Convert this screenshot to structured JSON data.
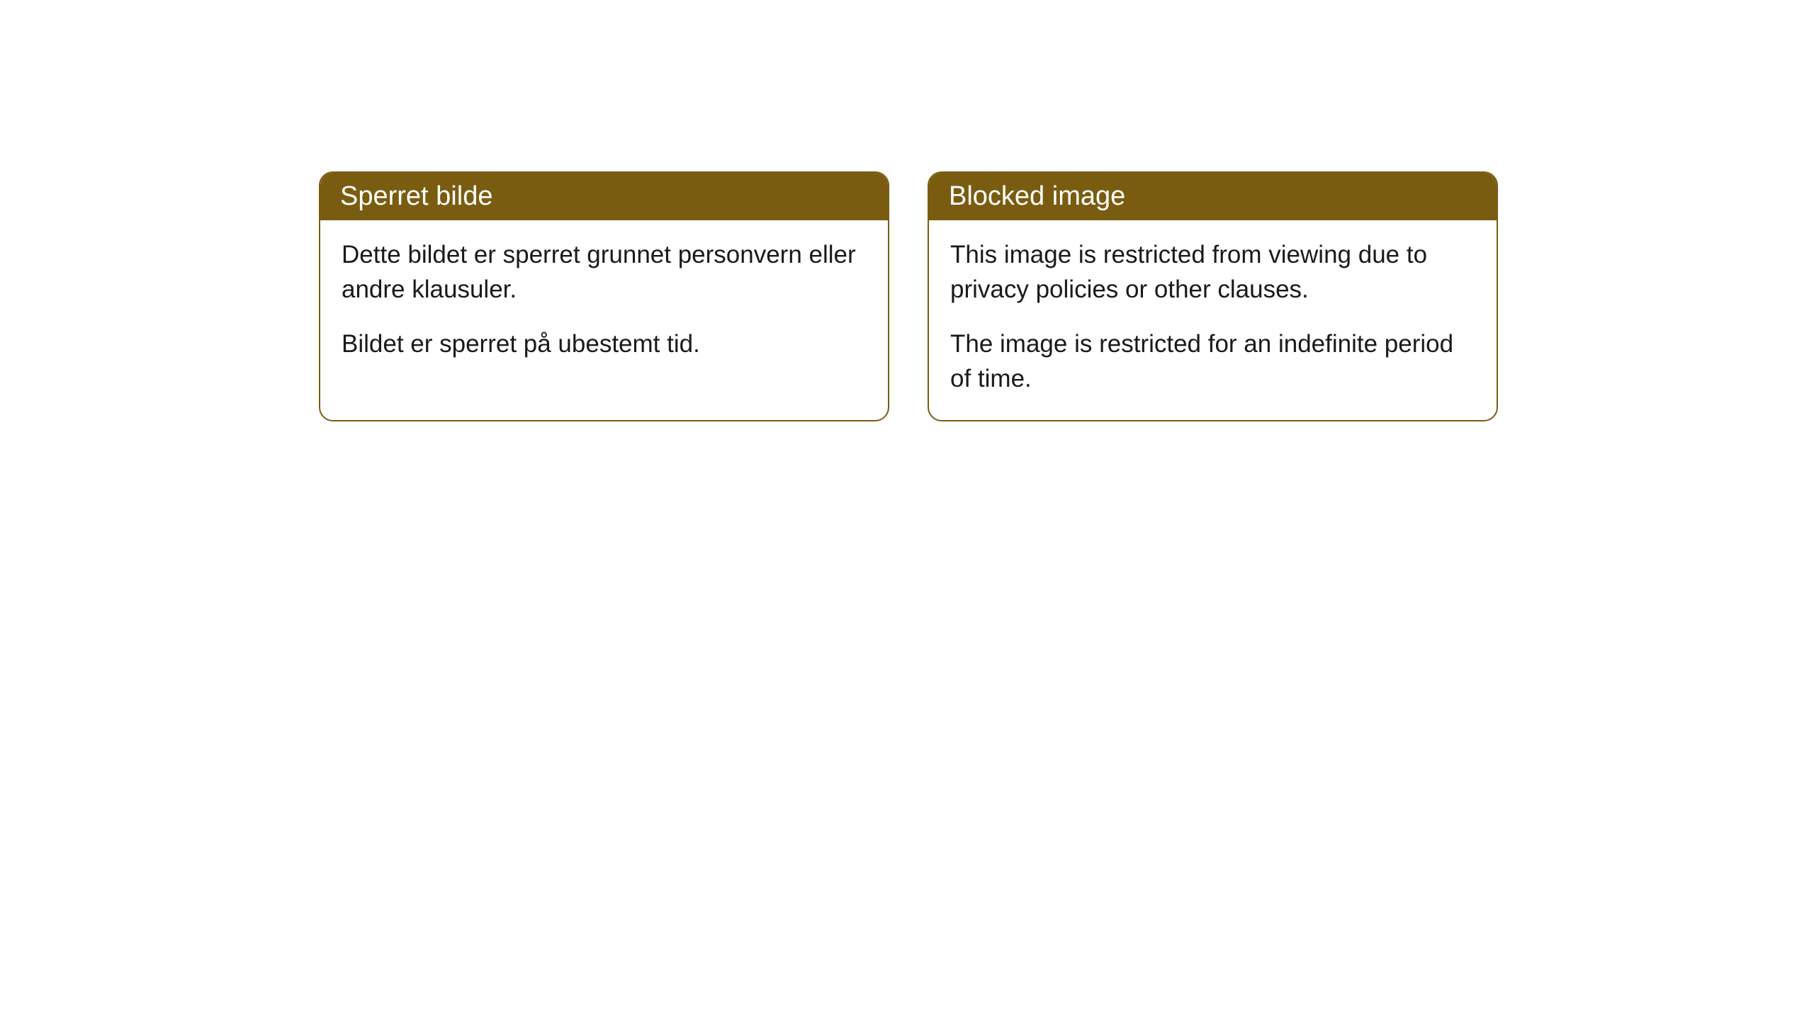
{
  "layout": {
    "background_color": "#ffffff",
    "card_border_color": "#7a5c11",
    "card_border_radius": 20,
    "header_background": "#7a5c11",
    "header_text_color": "#ffffff",
    "body_text_color": "#1a1a1a",
    "header_fontsize": 38,
    "body_fontsize": 35
  },
  "cards": [
    {
      "title": "Sperret bilde",
      "paragraph1": "Dette bildet er sperret grunnet personvern eller andre klausuler.",
      "paragraph2": "Bildet er sperret på ubestemt tid."
    },
    {
      "title": "Blocked image",
      "paragraph1": "This image is restricted from viewing due to privacy policies or other clauses.",
      "paragraph2": "The image is restricted for an indefinite period of time."
    }
  ]
}
